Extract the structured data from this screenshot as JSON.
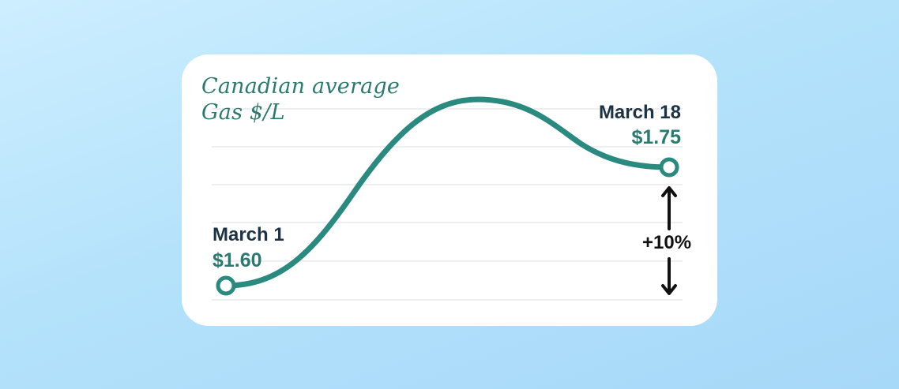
{
  "chart_data": {
    "type": "line",
    "title_lines": [
      "Canadian average",
      "Gas $/L"
    ],
    "start": {
      "date": "March 1",
      "value_label": "$1.60",
      "value": 1.6
    },
    "end": {
      "date": "March 18",
      "value_label": "$1.75",
      "value": 1.75
    },
    "change_label": "+10%",
    "gridlines": true,
    "colors": {
      "line": "#2a8a80",
      "title": "#2a7a70",
      "date": "#1c3346",
      "arrow": "#111111"
    }
  }
}
